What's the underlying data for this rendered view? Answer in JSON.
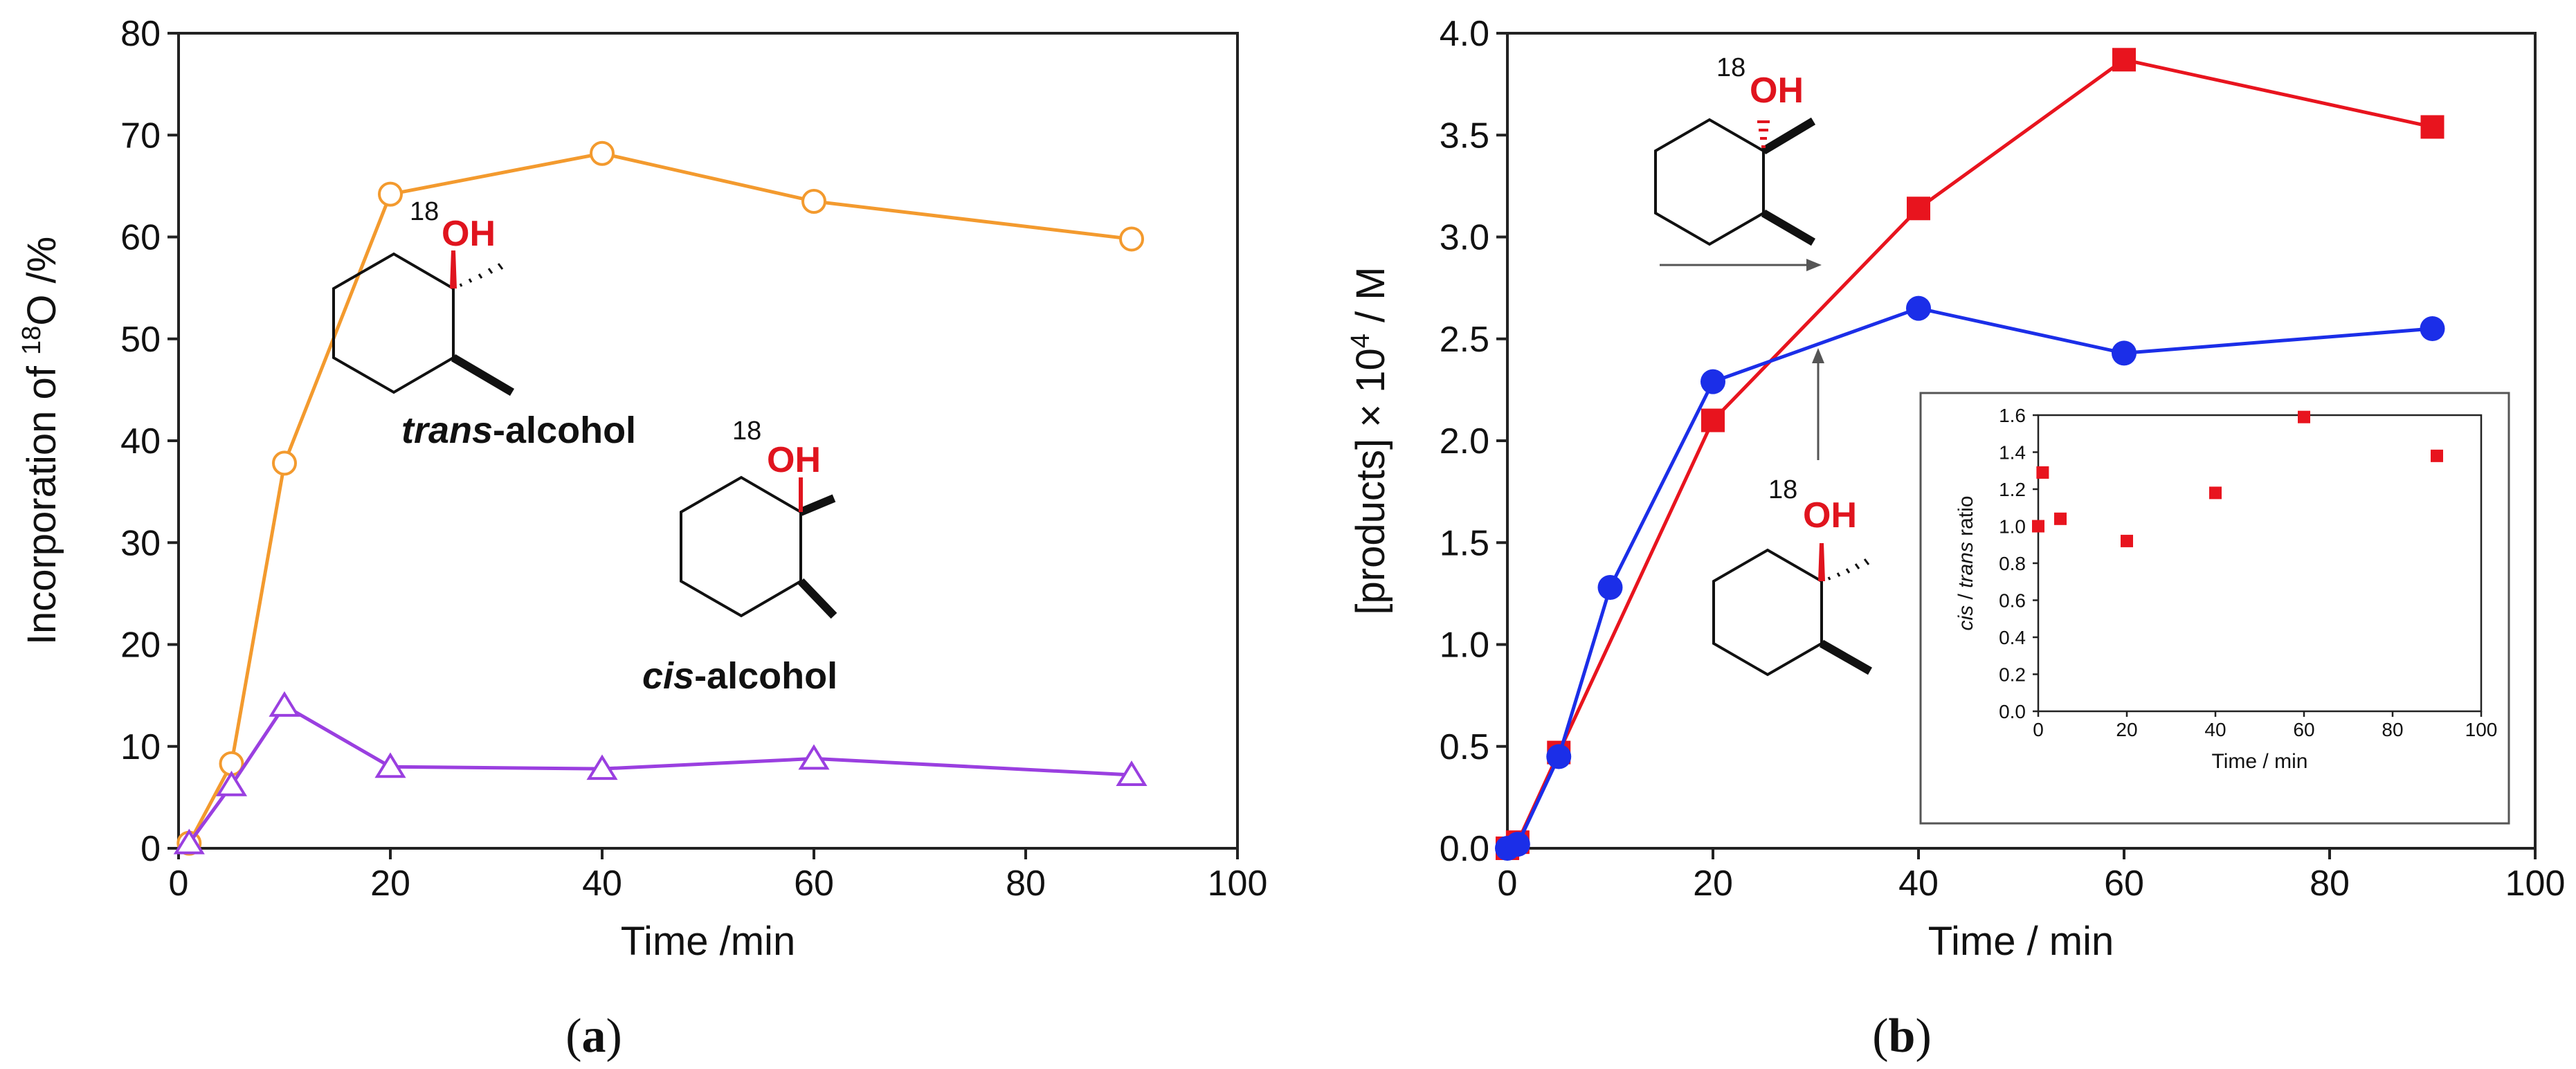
{
  "colors": {
    "trans_series": "#f39a2e",
    "cis_series": "#9a3fe0",
    "red_series": "#e8141e",
    "blue_series": "#1b2ee8",
    "oh_label": "#e0141e"
  },
  "panel_labels": {
    "a": "a",
    "b": "b"
  },
  "chart_data": [
    {
      "id": "a",
      "type": "line",
      "title": "",
      "xlabel": "Time /min",
      "ylabel_prefix": "Incorporation of ",
      "ylabel_sup": "18",
      "ylabel_suffix": "O /%",
      "xlim": [
        0,
        100
      ],
      "ylim": [
        0,
        80
      ],
      "xticks": [
        0,
        20,
        40,
        60,
        80,
        100
      ],
      "yticks": [
        0,
        10,
        20,
        30,
        40,
        50,
        60,
        70,
        80
      ],
      "series": [
        {
          "name": "trans-alcohol",
          "marker": "open-circle",
          "color": "#f39a2e",
          "x": [
            1,
            5,
            10,
            20,
            40,
            60,
            90
          ],
          "y": [
            0.5,
            8.3,
            37.8,
            64.2,
            68.2,
            63.5,
            59.8
          ]
        },
        {
          "name": "cis-alcohol",
          "marker": "open-triangle",
          "color": "#9a3fe0",
          "x": [
            1,
            5,
            10,
            20,
            40,
            60,
            90
          ],
          "y": [
            0.5,
            6.2,
            14.0,
            8.0,
            7.8,
            8.8,
            7.2
          ]
        }
      ],
      "annotations": [
        {
          "id": "trans",
          "oh_sup": "18",
          "oh": "OH",
          "italic": "trans",
          "rest": "-alcohol"
        },
        {
          "id": "cis",
          "oh_sup": "18",
          "oh": "OH",
          "italic": "cis",
          "rest": "-alcohol"
        }
      ]
    },
    {
      "id": "b",
      "type": "line",
      "title": "",
      "xlabel": "Time / min",
      "ylabel_prefix": "[products] × 10",
      "ylabel_sup": "4",
      "ylabel_suffix": " / M",
      "xlim": [
        0,
        100
      ],
      "ylim": [
        0,
        4.0
      ],
      "xticks": [
        0,
        20,
        40,
        60,
        80,
        100
      ],
      "yticks": [
        "0.0",
        "0.5",
        "1.0",
        "1.5",
        "2.0",
        "2.5",
        "3.0",
        "3.5",
        "4.0"
      ],
      "series": [
        {
          "name": "cis-alcohol",
          "marker": "filled-square",
          "color": "#e8141e",
          "x": [
            0,
            1,
            5,
            20,
            40,
            60,
            90
          ],
          "y": [
            0.0,
            0.03,
            0.47,
            2.1,
            3.14,
            3.87,
            3.54
          ]
        },
        {
          "name": "trans-alcohol",
          "marker": "filled-circle",
          "color": "#1b2ee8",
          "x": [
            0,
            1,
            5,
            10,
            20,
            40,
            60,
            90
          ],
          "y": [
            0.0,
            0.02,
            0.45,
            1.28,
            2.29,
            2.65,
            2.43,
            2.55
          ]
        }
      ],
      "annotations": [
        {
          "id": "top",
          "oh_sup": "18",
          "oh": "OH"
        },
        {
          "id": "bottom",
          "oh_sup": "18",
          "oh": "OH"
        }
      ],
      "inset": {
        "type": "scatter",
        "xlabel": "Time / min",
        "ylabel_italic1": "cis",
        "ylabel_mid": " / ",
        "ylabel_italic2": "trans",
        "ylabel_rest": " ratio",
        "xlim": [
          0,
          100
        ],
        "ylim": [
          0,
          1.6
        ],
        "xticks": [
          0,
          20,
          40,
          60,
          80,
          100
        ],
        "yticks": [
          "0.0",
          "0.2",
          "0.4",
          "0.6",
          "0.8",
          "1.0",
          "1.2",
          "1.4",
          "1.6"
        ],
        "x": [
          0,
          1,
          5,
          20,
          40,
          60,
          90
        ],
        "y": [
          1.0,
          1.29,
          1.04,
          0.92,
          1.18,
          1.59,
          1.38
        ],
        "color": "#e8141e"
      }
    }
  ]
}
